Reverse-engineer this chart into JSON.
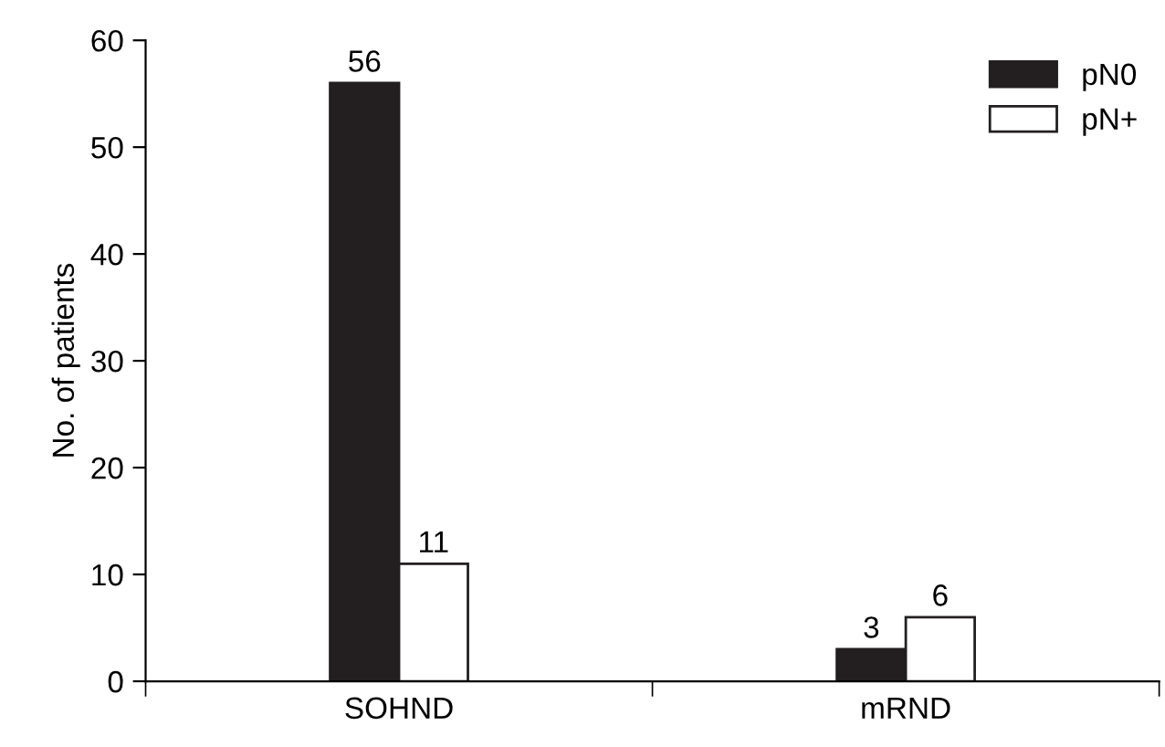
{
  "chart_data": {
    "type": "bar",
    "ylabel": "No. of patients",
    "categories": [
      "SOHND",
      "mRND"
    ],
    "series": [
      {
        "name": "pN0",
        "color": "#231f20",
        "values": [
          56,
          3
        ]
      },
      {
        "name": "pN+",
        "color": "#ffffff",
        "values": [
          11,
          6
        ]
      }
    ],
    "ylim": [
      0,
      60
    ],
    "yticks": [
      0,
      10,
      20,
      30,
      40,
      50,
      60
    ],
    "grid": false,
    "legend": "top right",
    "data_labels": true
  }
}
